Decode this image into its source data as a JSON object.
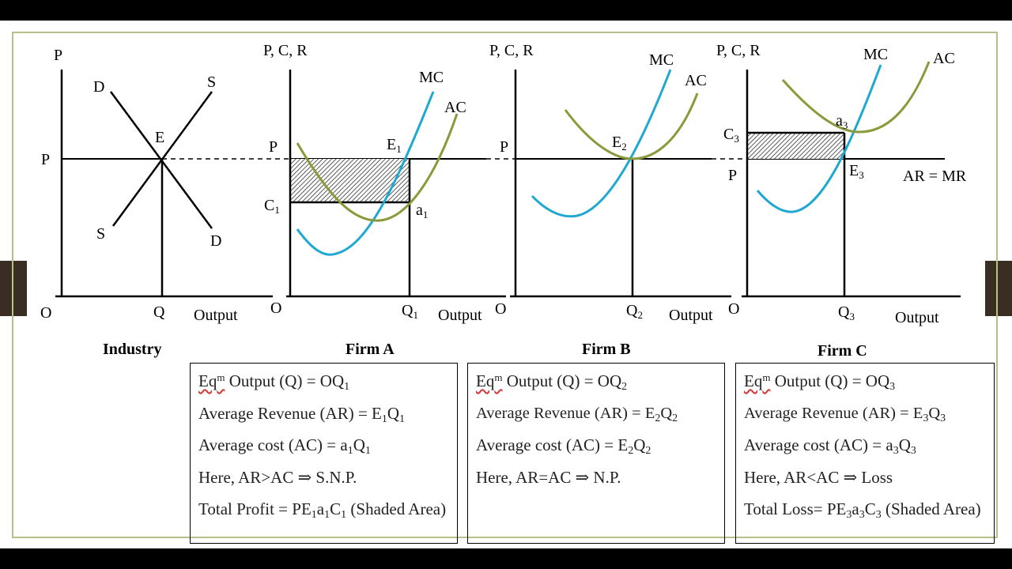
{
  "colors": {
    "mc": "#1fa8d0",
    "ac": "#8a9a3a",
    "frame": "#b7bf8a",
    "tab": "#3a2e22"
  },
  "industry": {
    "title": "Industry",
    "y_axis": "P",
    "origin": "O",
    "x_axis": "Output",
    "demand_top": "D",
    "demand_bottom": "D",
    "supply_top": "S",
    "supply_bottom": "S",
    "eq_point": "E",
    "price": "P",
    "quantity": "Q"
  },
  "firm_a": {
    "title": "Firm A",
    "y_axis": "P, C, R",
    "origin": "O",
    "x_axis": "Output",
    "mc": "MC",
    "ac": "AC",
    "price": "P",
    "cost": "C",
    "cost_sub": "1",
    "eq": "E",
    "eq_sub": "1",
    "a": "a",
    "a_sub": "1",
    "q": "Q",
    "q_sub": "1",
    "box": {
      "line1_pre": "Eq",
      "line1_sup": "m",
      "line1_mid": " Output (Q) = OQ",
      "line1_sub": "1",
      "line2_pre": "Average Revenue (AR) = E",
      "line2_s1": "1",
      "line2_mid": "Q",
      "line2_s2": "1",
      "line3_pre": "Average cost (AC) = a",
      "line3_s1": "1",
      "line3_mid": "Q",
      "line3_s2": "1",
      "line4": "Here, AR>AC ⇒ S.N.P.",
      "line5_pre": "Total Profit = PE",
      "line5_s1": "1",
      "line5_a": "a",
      "line5_s2": "1",
      "line5_c": "C",
      "line5_s3": "1",
      "line5_post": " (Shaded Area)"
    }
  },
  "firm_b": {
    "title": "Firm B",
    "y_axis": "P, C, R",
    "origin": "O",
    "x_axis": "Output",
    "mc": "MC",
    "ac": "AC",
    "price": "P",
    "eq": "E",
    "eq_sub": "2",
    "q": "Q",
    "q_sub": "2",
    "box": {
      "line1_pre": "Eq",
      "line1_sup": "m",
      "line1_mid": " Output (Q) = OQ",
      "line1_sub": "2",
      "line2_pre": "Average Revenue (AR) = E",
      "line2_s1": "2",
      "line2_mid": "Q",
      "line2_s2": "2",
      "line3_pre": "Average cost (AC) = E",
      "line3_s1": "2",
      "line3_mid": "Q",
      "line3_s2": "2",
      "line4": "Here, AR=AC ⇒ N.P."
    }
  },
  "firm_c": {
    "title": "Firm C",
    "y_axis": "P, C, R",
    "origin": "O",
    "x_axis": "Output",
    "mc": "MC",
    "ac": "AC",
    "price": "P",
    "cost": "C",
    "cost_sub": "3",
    "eq": "E",
    "eq_sub": "3",
    "a": "a",
    "a_sub": "3",
    "q": "Q",
    "q_sub": "3",
    "ar_mr": "AR = MR",
    "box": {
      "line1_pre": "Eq",
      "line1_sup": "m",
      "line1_mid": " Output (Q) = OQ",
      "line1_sub": "3",
      "line2_pre": "Average Revenue (AR) = E",
      "line2_s1": "3",
      "line2_mid": "Q",
      "line2_s2": "3",
      "line3_pre": "Average cost (AC) = a",
      "line3_s1": "3",
      "line3_mid": "Q",
      "line3_s2": "3",
      "line4": "Here, AR<AC ⇒ Loss",
      "line5_pre": "Total Loss= PE",
      "line5_s1": "3",
      "line5_a": "a",
      "line5_s2": "3",
      "line5_c": "C",
      "line5_s3": "3",
      "line5_post": " (Shaded Area)"
    }
  }
}
